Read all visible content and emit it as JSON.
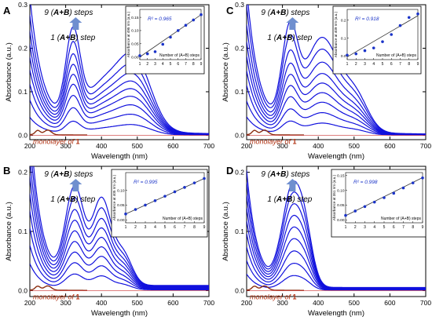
{
  "colors": {
    "blue": "#1111dd",
    "brown": "#8b2e10",
    "mono_text": "#b03010",
    "arrow": "#6f8fcf",
    "inset_line": "#333333",
    "inset_point": "#1a33c8",
    "r2_text": "#1a33c8"
  },
  "chart_data": [
    {
      "panel": "A",
      "type": "line",
      "xlabel": "Wavelength (nm)",
      "ylabel": "Absorbance (a.u.)",
      "xlim": [
        200,
        700
      ],
      "ylim": [
        -0.01,
        0.3
      ],
      "xticks": [
        "200",
        "300",
        "400",
        "500",
        "600",
        "700"
      ],
      "yticks": [
        "0.0",
        "0.1",
        "0.2",
        "0.3"
      ],
      "top_label": "9 (A+B) steps",
      "step_label": "1 (A+B) step",
      "mono_label": "monolayer of 1",
      "peaks_nm": [
        320,
        495
      ],
      "series_peak_absorbance": [
        0.024,
        0.047,
        0.068,
        0.087,
        0.104,
        0.121,
        0.139,
        0.16,
        0.185
      ],
      "monolayer_peak_absorbance": 0.012,
      "inset": {
        "ylabel": "Absorbance at 495 nm (a.u.)",
        "xlabel": "Number of (A+B) steps",
        "r2": "R² = 0.965",
        "xticks": [
          "1",
          "2",
          "3",
          "4",
          "5",
          "6",
          "7",
          "8",
          "9"
        ],
        "yticks": [
          "0.00",
          "0.05",
          "0.10",
          "0.15"
        ],
        "ylim": [
          -0.01,
          0.18
        ],
        "x": [
          1,
          2,
          3,
          4,
          5,
          6,
          7,
          8,
          9
        ],
        "y": [
          0.005,
          0.012,
          0.02,
          0.048,
          0.075,
          0.1,
          0.12,
          0.14,
          0.16
        ],
        "fit": [
          [
            1,
            0.0
          ],
          [
            9,
            0.16
          ]
        ]
      }
    },
    {
      "panel": "C",
      "type": "line",
      "xlabel": "Wavelength (nm)",
      "ylabel": "Absorbance (a.u.)",
      "xlim": [
        200,
        700
      ],
      "ylim": [
        -0.01,
        0.3
      ],
      "xticks": [
        "200",
        "300",
        "400",
        "500",
        "600",
        "700"
      ],
      "yticks": [
        "0.0",
        "0.1",
        "0.2",
        "0.3"
      ],
      "top_label": "9 (A+B) steps",
      "step_label": "1 (A+B) step",
      "mono_label": "monolayer of 1",
      "peaks_nm": [
        320,
        410
      ],
      "series_peak_absorbance": [
        0.028,
        0.052,
        0.076,
        0.098,
        0.12,
        0.142,
        0.168,
        0.198,
        0.225
      ],
      "monolayer_peak_absorbance": 0.012,
      "inset": {
        "ylabel": "Absorbance at 409 nm (a.u.)",
        "xlabel": "Number of (A+B) steps",
        "r2": "R² = 0.918",
        "xticks": [
          "1",
          "2",
          "3",
          "4",
          "5",
          "6",
          "7",
          "8",
          "9"
        ],
        "yticks": [
          "0.0",
          "0.1",
          "0.2"
        ],
        "ylim": [
          -0.02,
          0.26
        ],
        "x": [
          1,
          2,
          3,
          4,
          5,
          6,
          7,
          8,
          9
        ],
        "y": [
          0.005,
          0.012,
          0.03,
          0.045,
          0.08,
          0.12,
          0.17,
          0.215,
          0.235
        ],
        "fit": [
          [
            1,
            -0.005
          ],
          [
            9,
            0.225
          ]
        ]
      }
    },
    {
      "panel": "B",
      "type": "line",
      "xlabel": "Wavelength (nm)",
      "ylabel": "Absorbance (a.u.)",
      "xlim": [
        200,
        700
      ],
      "ylim": [
        -0.01,
        0.21
      ],
      "xticks": [
        "200",
        "300",
        "400",
        "500",
        "600",
        "700"
      ],
      "yticks": [
        "0.0",
        "0.1",
        "0.2"
      ],
      "top_label": "9 (A+B) steps",
      "step_label": "1 (A+B) step",
      "mono_label": "monolayer of 1",
      "peaks_nm": [
        330,
        400
      ],
      "series_peak_absorbance": [
        0.025,
        0.042,
        0.058,
        0.074,
        0.09,
        0.106,
        0.122,
        0.14,
        0.158
      ],
      "monolayer_peak_absorbance": 0.008,
      "inset": {
        "ylabel": "Absorbance at 405 nm (a.u.)",
        "xlabel": "Number of (A+B) steps",
        "r2": "R² = 0.995",
        "xticks": [
          "1",
          "2",
          "3",
          "4",
          "5",
          "6",
          "7",
          "8",
          "9"
        ],
        "yticks": [
          "0.00",
          "0.05",
          "0.10"
        ],
        "ylim": [
          -0.01,
          0.16
        ],
        "x": [
          1,
          2,
          3,
          4,
          5,
          6,
          7,
          8,
          9
        ],
        "y": [
          0.02,
          0.035,
          0.05,
          0.065,
          0.08,
          0.095,
          0.11,
          0.125,
          0.14
        ],
        "fit": [
          [
            1,
            0.02
          ],
          [
            9,
            0.14
          ]
        ]
      }
    },
    {
      "panel": "D",
      "type": "line",
      "xlabel": "Wavelength (nm)",
      "ylabel": "Absorbance (a.u.)",
      "xlim": [
        200,
        700
      ],
      "ylim": [
        -0.01,
        0.21
      ],
      "xticks": [
        "200",
        "300",
        "400",
        "500",
        "600",
        "700"
      ],
      "yticks": [
        "0.0",
        "0.1",
        "0.2"
      ],
      "top_label": "9 (A+B) steps",
      "step_label": "1 (A+B) step",
      "mono_label": "monolayer of 1",
      "peaks_nm": [
        320,
        355
      ],
      "series_peak_absorbance": [
        0.022,
        0.04,
        0.058,
        0.076,
        0.093,
        0.11,
        0.127,
        0.144,
        0.16
      ],
      "monolayer_peak_absorbance": 0.008,
      "inset": {
        "ylabel": "Absorbance at 351 nm (a.u.)",
        "xlabel": "Number of (A+B) steps",
        "r2": "R² = 0.998",
        "xticks": [
          "1",
          "2",
          "3",
          "4",
          "5",
          "6",
          "7",
          "8",
          "9"
        ],
        "yticks": [
          "0.00",
          "0.05",
          "0.10",
          "0.15"
        ],
        "ylim": [
          -0.01,
          0.16
        ],
        "x": [
          1,
          2,
          3,
          4,
          5,
          6,
          7,
          8,
          9
        ],
        "y": [
          0.015,
          0.03,
          0.045,
          0.06,
          0.075,
          0.09,
          0.108,
          0.125,
          0.142
        ],
        "fit": [
          [
            1,
            0.014
          ],
          [
            9,
            0.143
          ]
        ]
      }
    }
  ]
}
